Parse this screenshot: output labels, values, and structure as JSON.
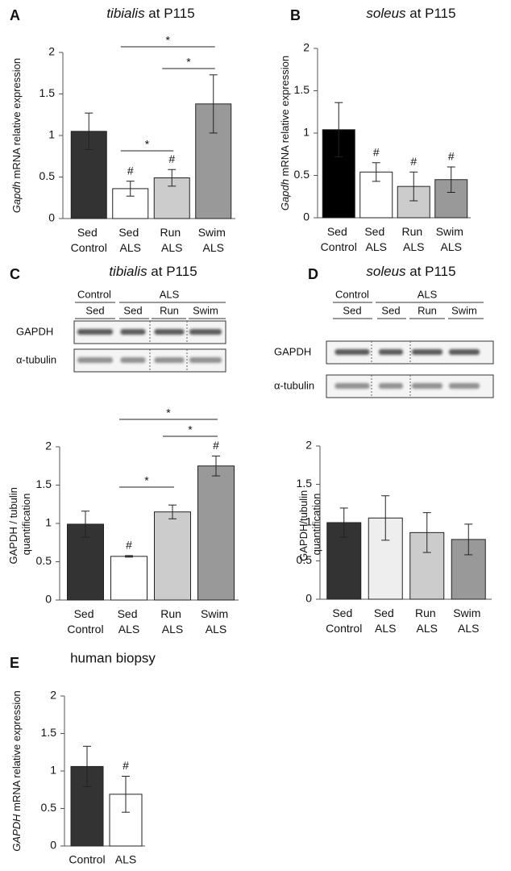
{
  "chart_data": [
    {
      "type": "bar",
      "panel": "A",
      "title": "tibialis at P115",
      "y_label": "Gapdh mRNA relative expression",
      "categories": [
        "Sed Control",
        "Sed ALS",
        "Run ALS",
        "Swim ALS"
      ],
      "values": [
        1.05,
        0.36,
        0.49,
        1.38
      ],
      "errors": [
        0.22,
        0.09,
        0.1,
        0.35
      ],
      "colors": [
        "#333333",
        "#ffffff",
        "#cccccc",
        "#999999"
      ],
      "hash_labels": [
        null,
        "#",
        "#",
        null
      ],
      "significance": [
        {
          "from": 1,
          "to": 3,
          "label": "*"
        },
        {
          "from": 2,
          "to": 3,
          "label": "*"
        },
        {
          "from": 1,
          "to": 2,
          "label": "*"
        }
      ],
      "ylim": [
        0,
        2
      ],
      "yticks": [
        0,
        0.5,
        1,
        1.5,
        2
      ]
    },
    {
      "type": "bar",
      "panel": "B",
      "title": "soleus at P115",
      "y_label": "Gapdh mRNA relative expression",
      "categories": [
        "Sed Control",
        "Sed ALS",
        "Run ALS",
        "Swim ALS"
      ],
      "values": [
        1.04,
        0.54,
        0.37,
        0.45
      ],
      "errors": [
        0.32,
        0.11,
        0.17,
        0.15
      ],
      "colors": [
        "#000000",
        "#ffffff",
        "#cccccc",
        "#999999"
      ],
      "hash_labels": [
        null,
        "#",
        "#",
        "#"
      ],
      "ylim": [
        0,
        2
      ],
      "yticks": [
        0,
        0.5,
        1,
        1.5,
        2
      ]
    },
    {
      "type": "bar",
      "panel": "C",
      "title": "tibialis at P115",
      "y_label": "GAPDH / tubulin quantification",
      "blot": {
        "group_labels": [
          "Control",
          "ALS"
        ],
        "lanes": [
          "Sed",
          "Sed",
          "Run",
          "Swim"
        ],
        "rows": [
          "GAPDH",
          "α-tubulin"
        ]
      },
      "categories": [
        "Sed Control",
        "Sed ALS",
        "Run ALS",
        "Swim ALS"
      ],
      "values": [
        0.99,
        0.57,
        1.15,
        1.75
      ],
      "errors": [
        0.17,
        0.01,
        0.09,
        0.13
      ],
      "colors": [
        "#333333",
        "#ffffff",
        "#cccccc",
        "#999999"
      ],
      "hash_labels": [
        null,
        "#",
        null,
        "#"
      ],
      "significance": [
        {
          "from": 1,
          "to": 3,
          "label": "*"
        },
        {
          "from": 2,
          "to": 3,
          "label": "*"
        },
        {
          "from": 1,
          "to": 2,
          "label": "*"
        }
      ],
      "ylim": [
        0,
        2
      ],
      "yticks": [
        0,
        0.5,
        1,
        1.5,
        2
      ]
    },
    {
      "type": "bar",
      "panel": "D",
      "title": "soleus at P115",
      "y_label": "GAPDH/tubulin quantification",
      "blot": {
        "group_labels": [
          "Control",
          "ALS"
        ],
        "lanes": [
          "Sed",
          "Sed",
          "Run",
          "Swim"
        ],
        "rows": [
          "GAPDH",
          "α-tubulin"
        ]
      },
      "categories": [
        "Sed Control",
        "Sed ALS",
        "Run ALS",
        "Swim ALS"
      ],
      "values": [
        1.0,
        1.06,
        0.87,
        0.78
      ],
      "errors": [
        0.19,
        0.29,
        0.26,
        0.2
      ],
      "colors": [
        "#333333",
        "#eeeeee",
        "#cccccc",
        "#999999"
      ],
      "ylim": [
        0,
        2
      ],
      "yticks": [
        0,
        0.5,
        1,
        1.5,
        2
      ]
    },
    {
      "type": "bar",
      "panel": "E",
      "title": "human biopsy",
      "y_label": "GAPDH  mRNA relative expression",
      "categories": [
        "Control",
        "ALS"
      ],
      "values": [
        1.06,
        0.69
      ],
      "errors": [
        0.27,
        0.24
      ],
      "colors": [
        "#333333",
        "#ffffff"
      ],
      "hash_labels": [
        null,
        "#"
      ],
      "ylim": [
        0,
        2
      ],
      "yticks": [
        0,
        0.5,
        1,
        1.5,
        2
      ]
    }
  ]
}
